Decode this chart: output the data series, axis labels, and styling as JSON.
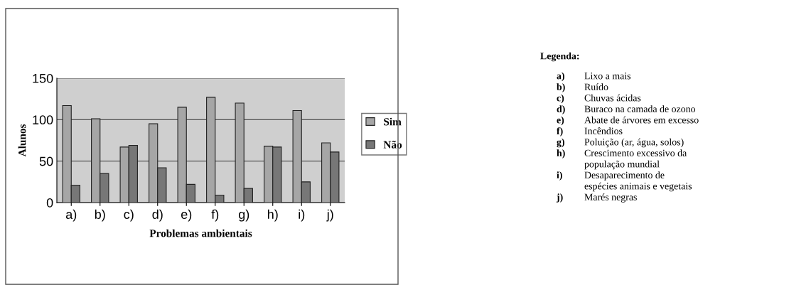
{
  "chart_data": {
    "type": "bar",
    "xlabel": "Problemas ambientais",
    "ylabel": "Alunos",
    "categories": [
      "a)",
      "b)",
      "c)",
      "d)",
      "e)",
      "f)",
      "g)",
      "h)",
      "i)",
      "j)"
    ],
    "series": [
      {
        "name": "Sim",
        "color": "#a6a6a6",
        "values": [
          117,
          101,
          67,
          95,
          115,
          127,
          120,
          68,
          111,
          72
        ]
      },
      {
        "name": "Não",
        "color": "#777777",
        "values": [
          21,
          35,
          69,
          42,
          22,
          9,
          17,
          67,
          25,
          61
        ]
      }
    ],
    "ylim": [
      0,
      150
    ],
    "yticks": [
      0,
      50,
      100,
      150
    ],
    "grid": "y",
    "legend": "right",
    "annotations": [
      "Legenda:",
      "a) Lixo a mais",
      "b) Ruído",
      "c) Chuvas ácidas",
      "d) Buraco na camada de ozono",
      "e) Abate de árvores em excesso",
      "f) Incêndios",
      "g) Poluição (ar, água, solos)",
      "h) Crescimento excessivo da\npopulação mundial",
      "i) Desaparecimento de\nespécies animais e vegetais",
      "j) Marés negras"
    ]
  }
}
